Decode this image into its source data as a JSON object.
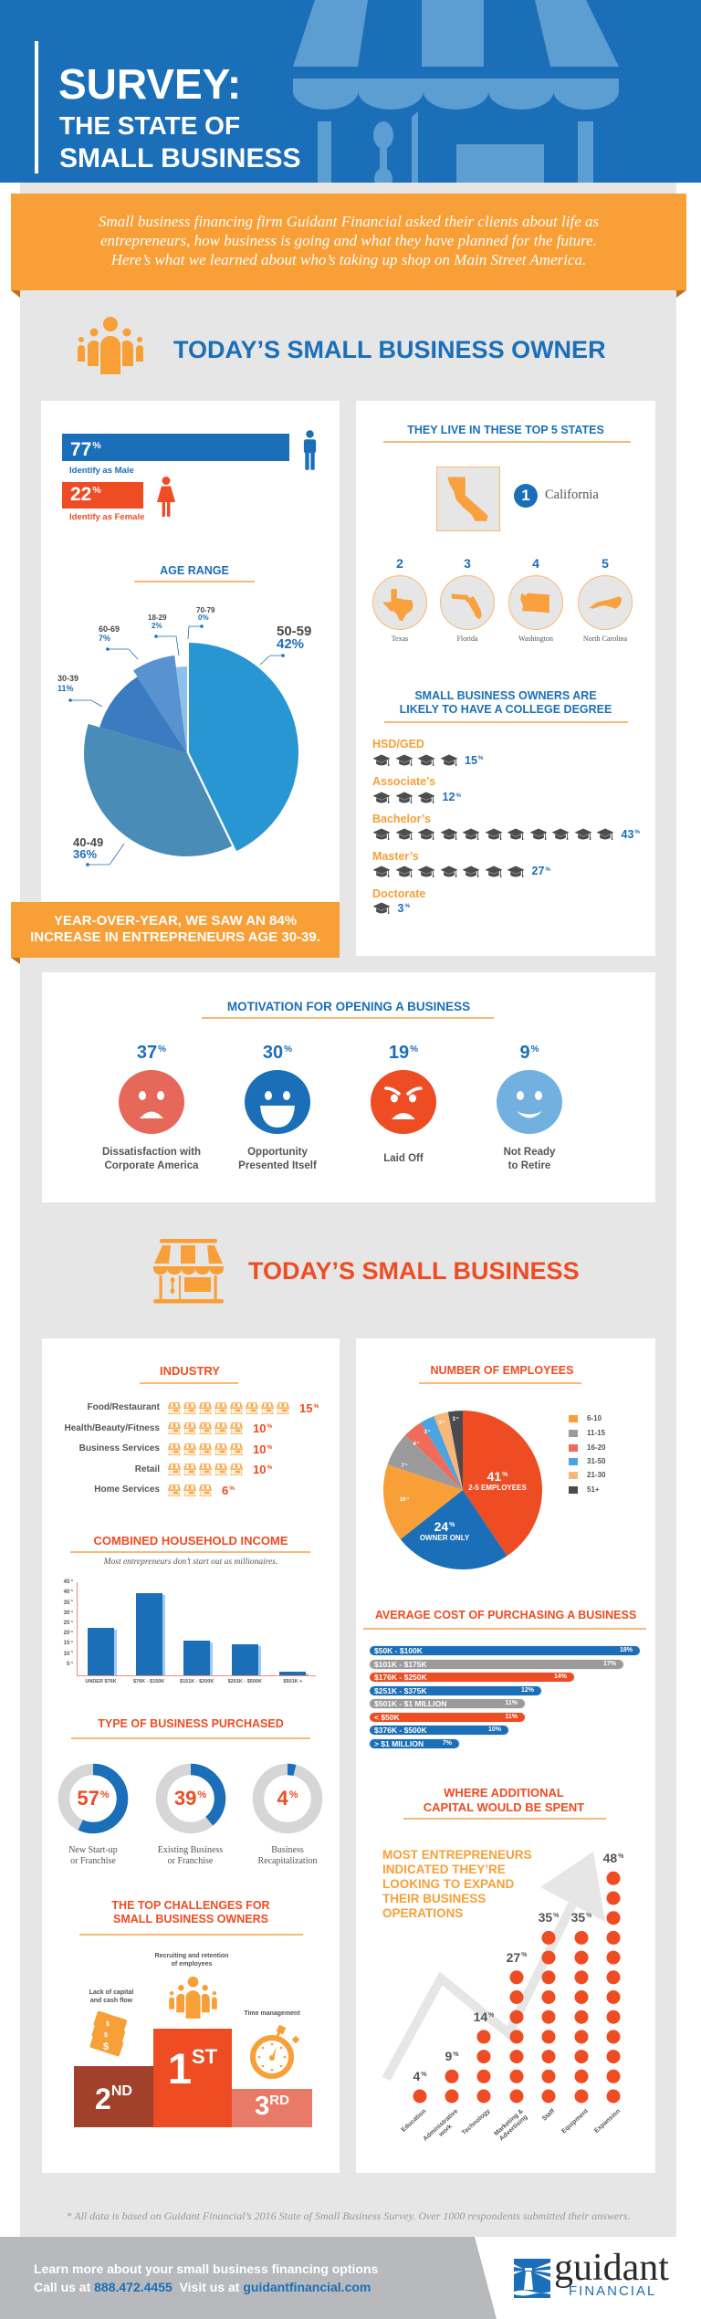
{
  "colors": {
    "brand_blue": "#1b6fb8",
    "brand_orange": "#f89f37",
    "brand_red": "#ee4c23",
    "panel_gray": "#e6e6e6",
    "text_gray": "#555555"
  },
  "header": {
    "title_line1": "SURVEY:",
    "title_line2": "THE STATE OF",
    "title_line3": "SMALL BUSINESS"
  },
  "intro": {
    "line1": "Small business financing firm Guidant Financial asked their clients about life as",
    "line2": "entrepreneurs, how business is going and what they have planned for the future.",
    "line3": "Here’s what we learned about who’s taking up shop on Main Street America."
  },
  "owner_section": {
    "title": "TODAY’S SMALL BUSINESS OWNER",
    "icon": "people-group-icon"
  },
  "gender": {
    "male": {
      "value": "77",
      "unit": "%",
      "label": "Identify as Male",
      "icon": "male-icon"
    },
    "female": {
      "value": "22",
      "unit": "%",
      "label": "Identify as Female",
      "icon": "female-icon"
    }
  },
  "age_range": {
    "title": "AGE RANGE",
    "slices": [
      {
        "label": "50-59",
        "value": 42,
        "display": "42%",
        "color": "#2896d3"
      },
      {
        "label": "40-49",
        "value": 36,
        "display": "36%",
        "color": "#4a8cb8"
      },
      {
        "label": "30-39",
        "value": 11,
        "display": "11%",
        "color": "#3b7cc0"
      },
      {
        "label": "60-69",
        "value": 7,
        "display": "7%",
        "color": "#5893cf"
      },
      {
        "label": "18-29",
        "value": 2,
        "display": "2%",
        "color": "#8ec1ea"
      },
      {
        "label": "70-79",
        "value": 0,
        "display": "0%",
        "color": "#b9d9f2"
      }
    ]
  },
  "callout": {
    "line1": "YEAR-OVER-YEAR, WE SAW AN 84%",
    "line2": "INCREASE IN ENTREPRENEURS AGE 30-39."
  },
  "states": {
    "title": "THEY LIVE IN THESE TOP 5 STATES",
    "items": [
      {
        "rank": "1",
        "name": "California"
      },
      {
        "rank": "2",
        "name": "Texas"
      },
      {
        "rank": "3",
        "name": "Florida"
      },
      {
        "rank": "4",
        "name": "Washington"
      },
      {
        "rank": "5",
        "name": "North Carolina"
      }
    ]
  },
  "education": {
    "title_line1": "SMALL BUSINESS OWNERS ARE",
    "title_line2": "LIKELY TO HAVE A COLLEGE DEGREE",
    "rows": [
      {
        "label": "HSD/GED",
        "icons": 4,
        "value": "15",
        "unit": "%"
      },
      {
        "label": "Associate’s",
        "icons": 3,
        "value": "12",
        "unit": "%"
      },
      {
        "label": "Bachelor’s",
        "icons": 11,
        "value": "43",
        "unit": "%"
      },
      {
        "label": "Master’s",
        "icons": 7,
        "value": "27",
        "unit": "%"
      },
      {
        "label": "Doctorate",
        "icons": 1,
        "value": "3",
        "unit": "%"
      }
    ]
  },
  "motivation": {
    "title": "MOTIVATION FOR OPENING A BUSINESS",
    "items": [
      {
        "value": "37",
        "unit": "%",
        "line1": "Dissatisfaction with",
        "line2": "Corporate America",
        "mood": "sad",
        "color": "#e5685a"
      },
      {
        "value": "30",
        "unit": "%",
        "line1": "Opportunity",
        "line2": "Presented Itself",
        "mood": "happy",
        "color": "#1b6fb8"
      },
      {
        "value": "19",
        "unit": "%",
        "line1": "Laid Off",
        "line2": "",
        "mood": "angry",
        "color": "#ee4c23"
      },
      {
        "value": "9",
        "unit": "%",
        "line1": "Not Ready",
        "line2": "to Retire",
        "mood": "smile",
        "color": "#72b0e0"
      }
    ]
  },
  "business_section": {
    "title": "TODAY’S SMALL BUSINESS",
    "icon": "storefront-icon"
  },
  "industry": {
    "title": "INDUSTRY",
    "rows": [
      {
        "label": "Food/Restaurant",
        "icons": 8,
        "value": "15",
        "unit": "%"
      },
      {
        "label": "Health/Beauty/Fitness",
        "icons": 5,
        "value": "10",
        "unit": "%"
      },
      {
        "label": "Business Services",
        "icons": 5,
        "value": "10",
        "unit": "%"
      },
      {
        "label": "Retail",
        "icons": 5,
        "value": "10",
        "unit": "%"
      },
      {
        "label": "Home Services",
        "icons": 3,
        "value": "6",
        "unit": "%"
      }
    ]
  },
  "income": {
    "title": "COMBINED HOUSEHOLD INCOME",
    "subtitle": "Most entrepreneurs don’t start out as millionaires.",
    "unit": "%",
    "y_ticks": [
      45,
      40,
      35,
      30,
      25,
      20,
      15,
      10,
      5
    ],
    "bars": [
      {
        "label": "UNDER $76K",
        "value": 23
      },
      {
        "label": "$76K - $150K",
        "value": 40
      },
      {
        "label": "$151K - $200K",
        "value": 17
      },
      {
        "label": "$201K - $500K",
        "value": 15
      },
      {
        "label": "$501K +",
        "value": 2
      }
    ]
  },
  "purchase_type": {
    "title": "TYPE OF BUSINESS PURCHASED",
    "items": [
      {
        "value": 57,
        "unit": "%",
        "line1": "New Start-up",
        "line2": "or Franchise"
      },
      {
        "value": 39,
        "unit": "%",
        "line1": "Existing Business",
        "line2": "or Franchise"
      },
      {
        "value": 4,
        "unit": "%",
        "line1": "Business",
        "line2": "Recapitalization"
      }
    ]
  },
  "challenges": {
    "title_line1": "THE TOP CHALLENGES FOR",
    "title_line2": "SMALL BUSINESS OWNERS",
    "first": {
      "rank": "1",
      "suffix": "ST",
      "line1": "Recruiting and retention",
      "line2": "of employees"
    },
    "second": {
      "rank": "2",
      "suffix": "ND",
      "line1": "Lack of capital",
      "line2": "and cash flow"
    },
    "third": {
      "rank": "3",
      "suffix": "RD",
      "line1": "Time management"
    }
  },
  "employees": {
    "title": "NUMBER OF EMPLOYEES",
    "slices": [
      {
        "label": "2-5 EMPLOYEES",
        "value": 41,
        "display": "41",
        "unit": "%",
        "color": "#ee4c23"
      },
      {
        "label": "OWNER ONLY",
        "value": 24,
        "display": "24",
        "unit": "%",
        "color": "#1b6fb8"
      },
      {
        "label": "6-10",
        "value": 16,
        "display": "16",
        "unit": "%",
        "color": "#f89f37"
      },
      {
        "label": "11-15",
        "value": 7,
        "display": "7",
        "unit": "%",
        "color": "#9b9b9b"
      },
      {
        "label": "16-20",
        "value": 4,
        "display": "4",
        "unit": "%",
        "color": "#ef6b5b"
      },
      {
        "label": "31-50",
        "value": 3,
        "display": "3",
        "unit": "%",
        "color": "#4ba3df"
      },
      {
        "label": "21-30",
        "value": 3,
        "display": "3",
        "unit": "%",
        "color": "#f8b679"
      },
      {
        "label": "51+",
        "value": 3,
        "display": "3",
        "unit": "%",
        "color": "#4b4b4f"
      }
    ],
    "legend": [
      {
        "label": "6-10",
        "color": "#f89f37"
      },
      {
        "label": "11-15",
        "color": "#9b9b9b"
      },
      {
        "label": "16-20",
        "color": "#ef6b5b"
      },
      {
        "label": "31-50",
        "color": "#4ba3df"
      },
      {
        "label": "21-30",
        "color": "#f8b679"
      },
      {
        "label": "51+",
        "color": "#4b4b4f"
      }
    ]
  },
  "cost": {
    "title": "AVERAGE COST OF PURCHASING A BUSINESS",
    "bars": [
      {
        "label": "$50K - $100K",
        "value": 18,
        "display": "18%",
        "color": "#1b6fb8"
      },
      {
        "label": "$101K - $175K",
        "value": 17,
        "display": "17%",
        "color": "#9b9b9b"
      },
      {
        "label": "$176K - $250K",
        "value": 14,
        "display": "14%",
        "color": "#ee4c23"
      },
      {
        "label": "$251K - $375K",
        "value": 12,
        "display": "12%",
        "color": "#1b6fb8"
      },
      {
        "label": "$501K - $1 MILLION",
        "value": 11,
        "display": "11%",
        "color": "#9b9b9b"
      },
      {
        "label": "< $50K",
        "value": 11,
        "display": "11%",
        "color": "#ee4c23"
      },
      {
        "label": "$376K - $500K",
        "value": 10,
        "display": "10%",
        "color": "#1b6fb8"
      },
      {
        "label": "> $1 MILLION",
        "value": 7,
        "display": "7%",
        "color": "#1b6fb8"
      }
    ]
  },
  "capital": {
    "title_line1": "WHERE ADDITIONAL",
    "title_line2": "CAPITAL WOULD BE SPENT",
    "callout_lines": [
      "MOST ENTREPRENEURS",
      "INDICATED THEY’RE",
      "LOOKING TO EXPAND",
      "THEIR BUSINESS",
      "OPERATIONS"
    ],
    "columns": [
      {
        "line1": "Education",
        "line2": "",
        "value": "4",
        "unit": "%",
        "dots": 1
      },
      {
        "line1": "Administrative",
        "line2": "work",
        "value": "9",
        "unit": "%",
        "dots": 2
      },
      {
        "line1": "Technology",
        "line2": "",
        "value": "14",
        "unit": "%",
        "dots": 4
      },
      {
        "line1": "Marketing &",
        "line2": "Advertising",
        "value": "27",
        "unit": "%",
        "dots": 7
      },
      {
        "line1": "Staff",
        "line2": "",
        "value": "35",
        "unit": "%",
        "dots": 9
      },
      {
        "line1": "Equipment",
        "line2": "",
        "value": "35",
        "unit": "%",
        "dots": 9
      },
      {
        "line1": "Expansion",
        "line2": "",
        "value": "48",
        "unit": "%",
        "dots": 12
      }
    ]
  },
  "footnote": "* All data is based on Guidant Financial’s 2016 State of Small Business Survey. Over 1000 respondents submitted their answers.",
  "footer": {
    "line1": "Learn more about your small business financing options",
    "call_prefix": "Call us at",
    "phone": "888.472.4455",
    "visit_prefix": "Visit us at",
    "website": "guidantfinancial.com"
  },
  "logo": {
    "name": "guidant",
    "sub": "FINANCIAL"
  },
  "chart_data": [
    {
      "type": "bar",
      "title": "Gender",
      "categories": [
        "Identify as Male",
        "Identify as Female"
      ],
      "values": [
        77,
        22
      ],
      "unit": "%"
    },
    {
      "type": "pie",
      "title": "AGE RANGE",
      "categories": [
        "50-59",
        "40-49",
        "30-39",
        "60-69",
        "18-29",
        "70-79"
      ],
      "values": [
        42,
        36,
        11,
        7,
        2,
        0
      ],
      "unit": "%"
    },
    {
      "type": "table",
      "title": "THEY LIVE IN THESE TOP 5 STATES",
      "columns": [
        "Rank",
        "State"
      ],
      "rows": [
        [
          1,
          "California"
        ],
        [
          2,
          "Texas"
        ],
        [
          3,
          "Florida"
        ],
        [
          4,
          "Washington"
        ],
        [
          5,
          "North Carolina"
        ]
      ]
    },
    {
      "type": "bar",
      "title": "SMALL BUSINESS OWNERS ARE LIKELY TO HAVE A COLLEGE DEGREE",
      "categories": [
        "HSD/GED",
        "Associate’s",
        "Bachelor’s",
        "Master’s",
        "Doctorate"
      ],
      "values": [
        15,
        12,
        43,
        27,
        3
      ],
      "unit": "%"
    },
    {
      "type": "bar",
      "title": "MOTIVATION FOR OPENING A BUSINESS",
      "categories": [
        "Dissatisfaction with Corporate America",
        "Opportunity Presented Itself",
        "Laid Off",
        "Not Ready to Retire"
      ],
      "values": [
        37,
        30,
        19,
        9
      ],
      "unit": "%"
    },
    {
      "type": "bar",
      "title": "INDUSTRY",
      "categories": [
        "Food/Restaurant",
        "Health/Beauty/Fitness",
        "Business Services",
        "Retail",
        "Home Services"
      ],
      "values": [
        15,
        10,
        10,
        10,
        6
      ],
      "unit": "%"
    },
    {
      "type": "bar",
      "title": "COMBINED HOUSEHOLD INCOME",
      "subtitle": "Most entrepreneurs don’t start out as millionaires.",
      "categories": [
        "UNDER $76K",
        "$76K - $150K",
        "$151K - $200K",
        "$201K - $500K",
        "$501K +"
      ],
      "values": [
        23,
        40,
        17,
        15,
        2
      ],
      "ylabel": "%",
      "ylim": [
        0,
        45
      ],
      "yticks": [
        5,
        10,
        15,
        20,
        25,
        30,
        35,
        40,
        45
      ],
      "grid": false
    },
    {
      "type": "pie",
      "title": "TYPE OF BUSINESS PURCHASED",
      "categories": [
        "New Start-up or Franchise",
        "Existing Business or Franchise",
        "Business Recapitalization"
      ],
      "values": [
        57,
        39,
        4
      ],
      "unit": "%",
      "style": "donut"
    },
    {
      "type": "table",
      "title": "THE TOP CHALLENGES FOR SMALL BUSINESS OWNERS",
      "columns": [
        "Rank",
        "Challenge"
      ],
      "rows": [
        [
          1,
          "Recruiting and retention of employees"
        ],
        [
          2,
          "Lack of capital and cash flow"
        ],
        [
          3,
          "Time management"
        ]
      ]
    },
    {
      "type": "pie",
      "title": "NUMBER OF EMPLOYEES",
      "categories": [
        "2-5 employees",
        "Owner only",
        "6-10",
        "11-15",
        "16-20",
        "31-50",
        "21-30",
        "51+"
      ],
      "values": [
        41,
        24,
        16,
        7,
        4,
        3,
        3,
        3
      ],
      "unit": "%",
      "legend_position": "right"
    },
    {
      "type": "bar",
      "orientation": "horizontal",
      "title": "AVERAGE COST OF PURCHASING A BUSINESS",
      "categories": [
        "$50K - $100K",
        "$101K - $175K",
        "$176K - $250K",
        "$251K - $375K",
        "$501K - $1 MILLION",
        "< $50K",
        "$376K - $500K",
        "> $1 MILLION"
      ],
      "values": [
        18,
        17,
        14,
        12,
        11,
        11,
        10,
        7
      ],
      "unit": "%"
    },
    {
      "type": "bar",
      "title": "WHERE ADDITIONAL CAPITAL WOULD BE SPENT",
      "annotation": "MOST ENTREPRENEURS INDICATED THEY’RE LOOKING TO EXPAND THEIR BUSINESS OPERATIONS",
      "categories": [
        "Education",
        "Administrative work",
        "Technology",
        "Marketing & Advertising",
        "Staff",
        "Equipment",
        "Expansion"
      ],
      "values": [
        4,
        9,
        14,
        27,
        35,
        35,
        48
      ],
      "unit": "%"
    }
  ]
}
